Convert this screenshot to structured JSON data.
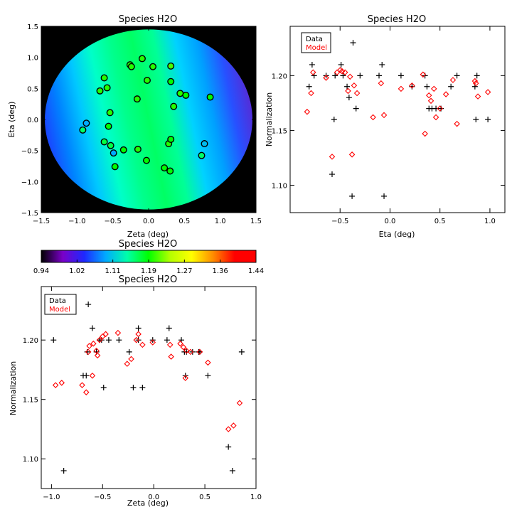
{
  "chart_data": [
    {
      "id": "map",
      "type": "heatmap",
      "title": "Species H2O",
      "xlabel": "Zeta (deg)",
      "ylabel": "Eta (deg)",
      "xlim": [
        -1.5,
        1.5
      ],
      "ylim": [
        -1.5,
        1.5
      ],
      "xticks": [
        -1.5,
        -1.0,
        -0.5,
        0.0,
        0.5,
        1.0,
        1.5
      ],
      "yticks": [
        -1.5,
        -1.0,
        -0.5,
        0.0,
        0.5,
        1.0,
        1.5
      ],
      "xtick_labels": [
        "−1.5",
        "−1.0",
        "−0.5",
        "0.0",
        "0.5",
        "1.0",
        "1.5"
      ],
      "ytick_labels": [
        "−1.5",
        "−1.0",
        "−0.5",
        "0.0",
        "0.5",
        "1.0",
        "1.5"
      ],
      "field_radius": 1.45,
      "points": [
        {
          "zeta": -0.09,
          "eta": 0.98,
          "value": 1.2
        },
        {
          "zeta": -0.26,
          "eta": 0.88,
          "value": 1.2
        },
        {
          "zeta": -0.24,
          "eta": 0.85,
          "value": 1.2
        },
        {
          "zeta": 0.06,
          "eta": 0.85,
          "value": 1.2
        },
        {
          "zeta": 0.31,
          "eta": 0.86,
          "value": 1.21
        },
        {
          "zeta": -0.62,
          "eta": 0.67,
          "value": 1.2
        },
        {
          "zeta": -0.58,
          "eta": 0.51,
          "value": 1.2
        },
        {
          "zeta": -0.68,
          "eta": 0.46,
          "value": 1.2
        },
        {
          "zeta": -0.02,
          "eta": 0.63,
          "value": 1.2
        },
        {
          "zeta": 0.31,
          "eta": 0.61,
          "value": 1.19
        },
        {
          "zeta": 0.44,
          "eta": 0.42,
          "value": 1.2
        },
        {
          "zeta": 0.52,
          "eta": 0.39,
          "value": 1.19
        },
        {
          "zeta": 0.86,
          "eta": 0.36,
          "value": 1.19
        },
        {
          "zeta": -0.16,
          "eta": 0.33,
          "value": 1.2
        },
        {
          "zeta": 0.35,
          "eta": 0.21,
          "value": 1.2
        },
        {
          "zeta": -0.54,
          "eta": 0.11,
          "value": 1.2
        },
        {
          "zeta": -0.56,
          "eta": -0.11,
          "value": 1.19
        },
        {
          "zeta": -0.87,
          "eta": -0.06,
          "value": 1.09
        },
        {
          "zeta": -0.92,
          "eta": -0.17,
          "value": 1.16
        },
        {
          "zeta": -0.62,
          "eta": -0.36,
          "value": 1.17
        },
        {
          "zeta": -0.53,
          "eta": -0.42,
          "value": 1.17
        },
        {
          "zeta": -0.49,
          "eta": -0.54,
          "value": 1.09
        },
        {
          "zeta": -0.35,
          "eta": -0.49,
          "value": 1.19
        },
        {
          "zeta": -0.15,
          "eta": -0.48,
          "value": 1.2
        },
        {
          "zeta": -0.47,
          "eta": -0.76,
          "value": 1.19
        },
        {
          "zeta": -0.03,
          "eta": -0.66,
          "value": 1.19
        },
        {
          "zeta": 0.28,
          "eta": -0.39,
          "value": 1.2
        },
        {
          "zeta": 0.31,
          "eta": -0.32,
          "value": 1.19
        },
        {
          "zeta": 0.22,
          "eta": -0.78,
          "value": 1.19
        },
        {
          "zeta": 0.3,
          "eta": -0.83,
          "value": 1.19
        },
        {
          "zeta": 0.78,
          "eta": -0.39,
          "value": 1.1
        },
        {
          "zeta": 0.74,
          "eta": -0.58,
          "value": 1.16
        }
      ]
    },
    {
      "id": "colorbar",
      "type": "colorbar",
      "title": "Species H2O",
      "range": [
        0.94,
        1.44
      ],
      "tick_labels": [
        "0.94",
        "1.02",
        "1.11",
        "1.19",
        "1.27",
        "1.36",
        "1.44"
      ],
      "colors": [
        "#000000",
        "#7a00c8",
        "#1e28ff",
        "#00aaff",
        "#00ffaa",
        "#00ff00",
        "#b4ff00",
        "#ffff00",
        "#ff8c00",
        "#ff0000",
        "#ff0000"
      ]
    },
    {
      "id": "eta_plot",
      "type": "scatter",
      "title": "Species H2O",
      "xlabel": "Eta (deg)",
      "ylabel": "Normalization",
      "xlim": [
        -1.0,
        1.15
      ],
      "ylim": [
        1.075,
        1.245
      ],
      "xticks": [
        -0.5,
        0.0,
        0.5,
        1.0
      ],
      "xtick_labels": [
        "−0.5",
        "0.0",
        "0.5",
        "1.0"
      ],
      "yticks": [
        1.1,
        1.15,
        1.2
      ],
      "ytick_labels": [
        "1.10",
        "1.15",
        "1.20"
      ],
      "legend": [
        "Data",
        "Model"
      ],
      "series": [
        {
          "name": "Data",
          "marker": "plus",
          "color": "#000000",
          "x": [
            -0.81,
            -0.78,
            -0.76,
            -0.64,
            -0.55,
            -0.49,
            -0.47,
            -0.43,
            -0.41,
            -0.37,
            -0.34,
            -0.3,
            -0.56,
            -0.11,
            -0.08,
            -0.58,
            -0.38,
            -0.06,
            0.11,
            0.22,
            0.35,
            0.37,
            0.39,
            0.42,
            0.46,
            0.51,
            0.61,
            0.67,
            0.85,
            0.86,
            0.87,
            0.98
          ],
          "y": [
            1.19,
            1.21,
            1.2,
            1.2,
            1.2,
            1.21,
            1.2,
            1.19,
            1.18,
            1.23,
            1.17,
            1.2,
            1.16,
            1.2,
            1.21,
            1.11,
            1.09,
            1.09,
            1.2,
            1.19,
            1.2,
            1.19,
            1.17,
            1.17,
            1.17,
            1.17,
            1.19,
            1.2,
            1.19,
            1.16,
            1.2,
            1.16
          ]
        },
        {
          "name": "Model",
          "marker": "diamond",
          "color": "#ff0000",
          "x": [
            -0.83,
            -0.79,
            -0.77,
            -0.64,
            -0.53,
            -0.5,
            -0.48,
            -0.45,
            -0.42,
            -0.4,
            -0.36,
            -0.33,
            -0.58,
            -0.38,
            -0.17,
            -0.09,
            -0.06,
            0.11,
            0.22,
            0.33,
            0.35,
            0.39,
            0.41,
            0.44,
            0.46,
            0.5,
            0.56,
            0.63,
            0.67,
            0.85,
            0.86,
            0.88,
            0.98
          ],
          "y": [
            1.167,
            1.184,
            1.203,
            1.198,
            1.203,
            1.205,
            1.204,
            1.203,
            1.186,
            1.199,
            1.191,
            1.184,
            1.126,
            1.128,
            1.162,
            1.193,
            1.164,
            1.188,
            1.191,
            1.201,
            1.147,
            1.182,
            1.177,
            1.188,
            1.162,
            1.17,
            1.183,
            1.196,
            1.156,
            1.195,
            1.193,
            1.181,
            1.185
          ]
        }
      ]
    },
    {
      "id": "zeta_plot",
      "type": "scatter",
      "title": "Species H2O",
      "xlabel": "Zeta (deg)",
      "ylabel": "Normalization",
      "xlim": [
        -1.1,
        1.0
      ],
      "ylim": [
        1.075,
        1.245
      ],
      "xticks": [
        -1.0,
        -0.5,
        0.0,
        0.5,
        1.0
      ],
      "xtick_labels": [
        "−1.0",
        "−0.5",
        "0.0",
        "0.5",
        "1.0"
      ],
      "yticks": [
        1.1,
        1.15,
        1.2
      ],
      "ytick_labels": [
        "1.10",
        "1.15",
        "1.20"
      ],
      "legend": [
        "Data",
        "Model"
      ],
      "series": [
        {
          "name": "Data",
          "marker": "plus",
          "color": "#000000",
          "x": [
            -0.98,
            -0.88,
            -0.69,
            -0.65,
            -0.64,
            -0.6,
            -0.56,
            -0.53,
            -0.49,
            -0.44,
            -0.34,
            -0.24,
            -0.2,
            -0.15,
            -0.15,
            -0.11,
            -0.01,
            0.13,
            0.15,
            0.27,
            0.3,
            0.31,
            0.32,
            0.38,
            0.44,
            0.53,
            0.73,
            0.77,
            0.86,
            -0.66,
            -0.51,
            0.45
          ],
          "y": [
            1.2,
            1.09,
            1.17,
            1.19,
            1.23,
            1.21,
            1.19,
            1.2,
            1.16,
            1.2,
            1.2,
            1.19,
            1.16,
            1.21,
            1.2,
            1.16,
            1.2,
            1.2,
            1.21,
            1.2,
            1.19,
            1.17,
            1.19,
            1.19,
            1.19,
            1.17,
            1.11,
            1.09,
            1.19,
            1.17,
            1.2,
            1.19
          ]
        },
        {
          "name": "Model",
          "marker": "diamond",
          "color": "#ff0000",
          "x": [
            -0.96,
            -0.9,
            -0.7,
            -0.66,
            -0.63,
            -0.6,
            -0.59,
            -0.56,
            -0.55,
            -0.53,
            -0.5,
            -0.47,
            -0.35,
            -0.26,
            -0.22,
            -0.17,
            -0.15,
            -0.11,
            -0.01,
            0.16,
            0.17,
            0.26,
            0.29,
            0.31,
            0.32,
            0.36,
            0.45,
            0.53,
            0.73,
            0.78,
            0.84,
            -0.64
          ],
          "y": [
            1.162,
            1.164,
            1.162,
            1.156,
            1.195,
            1.17,
            1.197,
            1.191,
            1.187,
            1.2,
            1.203,
            1.205,
            1.206,
            1.18,
            1.184,
            1.2,
            1.205,
            1.196,
            1.198,
            1.196,
            1.186,
            1.197,
            1.194,
            1.168,
            1.191,
            1.19,
            1.19,
            1.181,
            1.125,
            1.128,
            1.147,
            1.19
          ]
        }
      ]
    }
  ]
}
